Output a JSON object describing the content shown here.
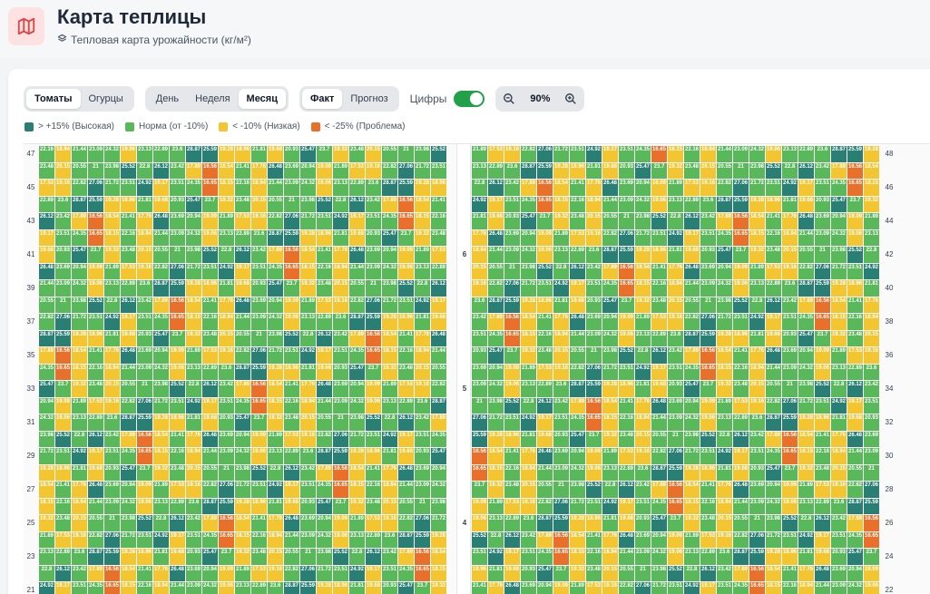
{
  "header": {
    "title": "Карта теплицы",
    "subtitle": "Тепловая карта урожайности (кг/м²)",
    "accent": "#e04444"
  },
  "toolbar": {
    "crops": [
      {
        "label": "Томаты",
        "active": true
      },
      {
        "label": "Огурцы",
        "active": false
      }
    ],
    "periods": [
      {
        "label": "День",
        "active": false
      },
      {
        "label": "Неделя",
        "active": false
      },
      {
        "label": "Месяц",
        "active": true
      }
    ],
    "modes": [
      {
        "label": "Факт",
        "active": true
      },
      {
        "label": "Прогноз",
        "active": false
      }
    ],
    "digits_label": "Цифры",
    "digits_on": true,
    "zoom_value": "90%"
  },
  "legend": [
    {
      "label": "> +15% (Высокая)",
      "color": "#2a7f74"
    },
    {
      "label": "Норма (от -10%)",
      "color": "#58b85a"
    },
    {
      "label": "< -10% (Низкая)",
      "color": "#f2c531"
    },
    {
      "label": "< -25% (Проблема)",
      "color": "#e9702a"
    }
  ],
  "grid": {
    "left_rows": [
      "47",
      "",
      "45",
      "",
      "43",
      "",
      "41",
      "",
      "39",
      "",
      "37",
      "",
      "35",
      "",
      "33",
      "",
      "31",
      "",
      "29",
      "",
      "27",
      "",
      "25",
      "",
      "23",
      "",
      "21"
    ],
    "right_rows": [
      "48",
      "",
      "46",
      "",
      "44",
      "",
      "42",
      "",
      "40",
      "",
      "38",
      "",
      "36",
      "",
      "34",
      "",
      "32",
      "",
      "30",
      "",
      "28",
      "",
      "26",
      "",
      "24",
      "",
      "22"
    ],
    "aisle_labels": [
      {
        "row": 6,
        "label": "6"
      },
      {
        "row": 14,
        "label": "5"
      },
      {
        "row": 22,
        "label": "4"
      }
    ],
    "sample_values": [
      "22.16",
      "23.7",
      "23.69",
      "18.94",
      "19.32",
      "20.94",
      "21.44",
      "23.48",
      "19.09",
      "23.09",
      "20.15",
      "21.89",
      "24.32",
      "20.55",
      "17.53",
      "19.06",
      "21",
      "19.16",
      "23.13",
      "23.98",
      "22.82",
      "22.89",
      "25.52",
      "27.06",
      "23.6",
      "22.8",
      "21.72",
      "28.87",
      "26.12",
      "23.51",
      "25.59",
      "23.42",
      "24.92",
      "19.28",
      "17.89",
      "19.17",
      "18.96",
      "16.56",
      "23.51",
      "21.81",
      "18.54",
      "24.35",
      "19.68",
      "21.41",
      "16.65",
      "20.93",
      "17.76",
      "18.15",
      "25.47",
      "26.48"
    ]
  }
}
